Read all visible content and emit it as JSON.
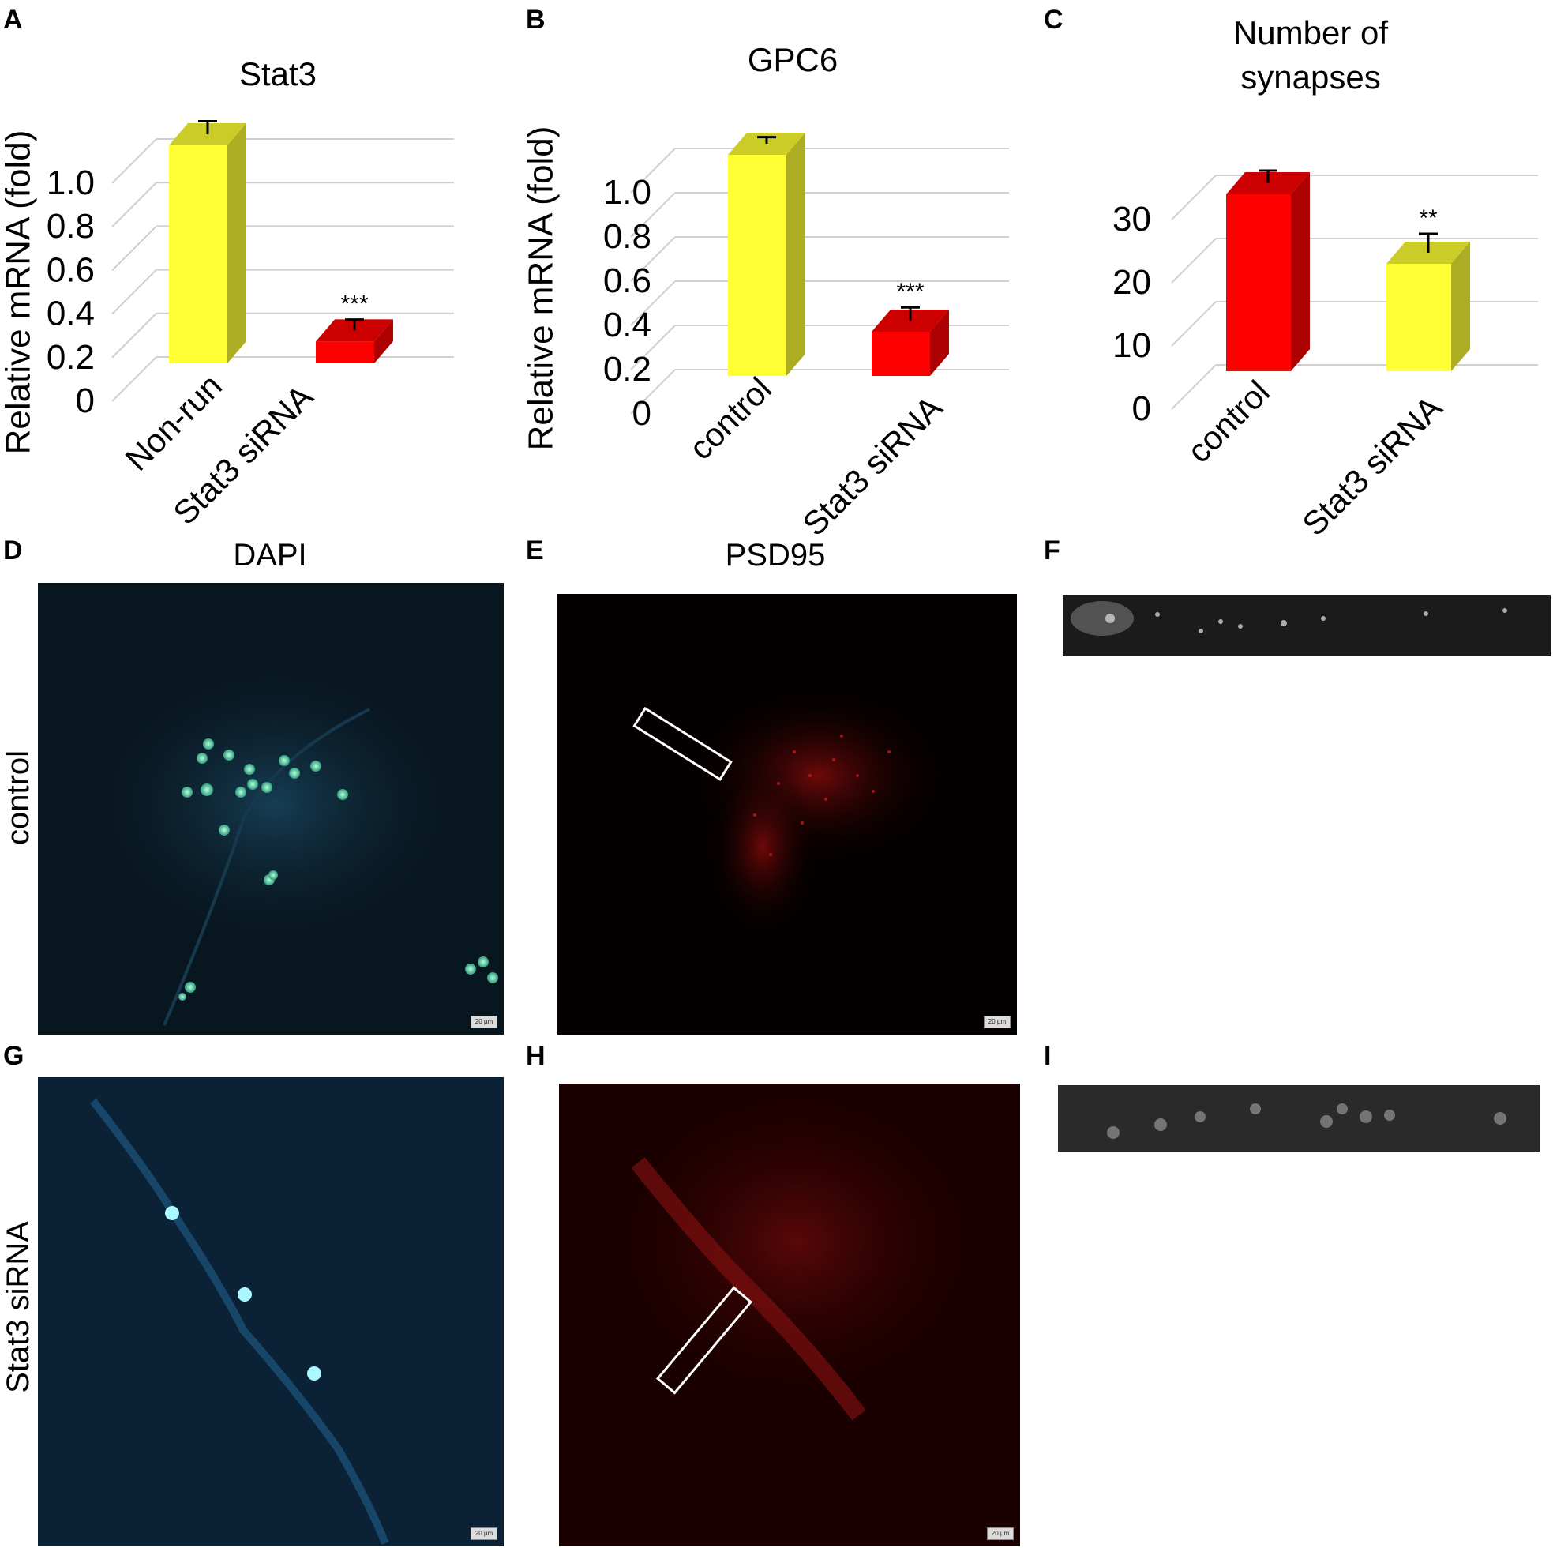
{
  "panels": {
    "A": "A",
    "B": "B",
    "C": "C",
    "D": "D",
    "E": "E",
    "F": "F",
    "G": "G",
    "H": "H",
    "I": "I"
  },
  "chart_data": [
    {
      "panel": "A",
      "type": "bar",
      "title": "Stat3",
      "ylabel": "Relative mRNA (fold)",
      "ylim": [
        0,
        1.0
      ],
      "yticks": [
        "0",
        "0.2",
        "0.4",
        "0.6",
        "0.8",
        "1.0"
      ],
      "categories": [
        "Non-run",
        "Stat3 siRNA"
      ],
      "values": [
        1.0,
        0.1
      ],
      "errors": [
        0.06,
        0.05
      ],
      "colors": [
        "#ffff33",
        "#ff0000"
      ],
      "significance": [
        "",
        "***"
      ]
    },
    {
      "panel": "B",
      "type": "bar",
      "title": "GPC6",
      "ylabel": "Relative mRNA (fold)",
      "ylim": [
        0,
        1.0
      ],
      "yticks": [
        "0",
        "0.2",
        "0.4",
        "0.6",
        "0.8",
        "1.0"
      ],
      "categories": [
        "control",
        "Stat3 siRNA"
      ],
      "values": [
        1.0,
        0.2
      ],
      "errors": [
        0.03,
        0.06
      ],
      "colors": [
        "#ffff33",
        "#ff0000"
      ],
      "significance": [
        "",
        "***"
      ]
    },
    {
      "panel": "C",
      "type": "bar",
      "title": "Number of synapses",
      "title_lines": [
        "Number of",
        "synapses"
      ],
      "ylabel": "",
      "ylim": [
        0,
        30
      ],
      "yticks": [
        "0",
        "10",
        "20",
        "30"
      ],
      "categories": [
        "control",
        "Stat3 siRNA"
      ],
      "values": [
        28,
        17
      ],
      "errors": [
        2,
        3
      ],
      "colors": [
        "#ff0000",
        "#ffff33"
      ],
      "significance": [
        "",
        "**"
      ]
    }
  ],
  "images": {
    "column_titles": {
      "dapi": "DAPI",
      "psd95": "PSD95"
    },
    "row_labels": {
      "control": "control",
      "siRNA": "Stat3 siRNA"
    },
    "scale_bar": "20 µm"
  }
}
